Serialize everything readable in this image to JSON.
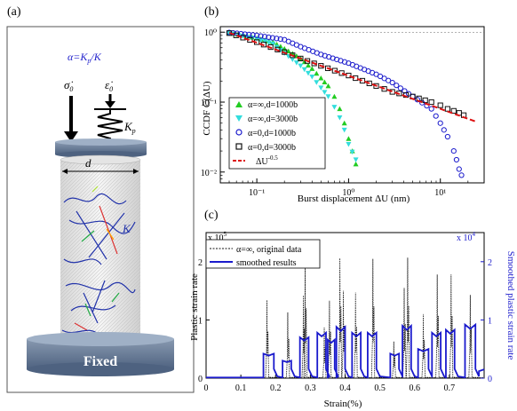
{
  "panels": {
    "a": {
      "label": "(a)",
      "alpha_eq": "α=K",
      "alpha_sub": "p",
      "alpha_tail": "/K",
      "sigma_dot": "σ̇",
      "sigma_sub": "0",
      "eps_dot": "ε̇",
      "eps_sub": "0",
      "kp": "K",
      "kp_sub": "p",
      "d": "d",
      "k": "K",
      "fixed": "Fixed"
    },
    "b": {
      "label": "(b)",
      "ylabel": "CCDF C(ΔU)",
      "xlabel": "Burst displacement ΔU (nm)",
      "xticks": [
        "10⁻¹",
        "10⁰",
        "10¹"
      ],
      "yticks": [
        "10⁰",
        "10⁻¹",
        "10⁻²"
      ],
      "legend": [
        "α=∞,d=1000b",
        "α=∞,d=3000b",
        "α=0,d=1000b",
        "α=0,d=3000b",
        "ΔU"
      ],
      "legend_exp": "-0.5"
    },
    "c": {
      "label": "(c)",
      "ylabel_left": "Plastic strain rate",
      "ylabel_right": "Smoothed plastic strain rate",
      "xlabel": "Strain(%)",
      "mult_left": "x 10",
      "mult_left_exp": "5",
      "mult_right": "x 10",
      "mult_right_exp": "4",
      "xticks": [
        "0",
        "0.1",
        "0.2",
        "0.3",
        "0.4",
        "0.5",
        "0.6",
        "0.7"
      ],
      "yticks_left": [
        "0",
        "1",
        "2"
      ],
      "yticks_right": [
        "0",
        "1",
        "2"
      ],
      "legend": [
        "α=∞, original data",
        "smoothed results"
      ]
    }
  },
  "colors": {
    "green": "#22cc22",
    "cyan": "#33dddd",
    "blue": "#1a1acc",
    "black": "#111111",
    "red": "#dd1111",
    "smooth": "#1a1acc"
  },
  "chart_data": [
    {
      "type": "scatter",
      "scale": "log-log",
      "xlim": [
        0.04,
        30
      ],
      "ylim": [
        0.007,
        1.2
      ],
      "series": [
        {
          "name": "α=∞,d=1000b",
          "marker": "triangle-up",
          "color": "#22cc22",
          "x": [
            0.05,
            0.07,
            0.1,
            0.15,
            0.2,
            0.3,
            0.4,
            0.5,
            0.6,
            0.7,
            0.8,
            0.9,
            1.0,
            1.1,
            1.2
          ],
          "y": [
            0.98,
            0.9,
            0.82,
            0.72,
            0.58,
            0.42,
            0.3,
            0.22,
            0.17,
            0.12,
            0.08,
            0.05,
            0.03,
            0.02,
            0.013
          ]
        },
        {
          "name": "α=∞,d=3000b",
          "marker": "triangle-down",
          "color": "#33dddd",
          "x": [
            0.05,
            0.07,
            0.1,
            0.15,
            0.2,
            0.3,
            0.4,
            0.5,
            0.6,
            0.7,
            0.8,
            0.9,
            1.0,
            1.2
          ],
          "y": [
            0.97,
            0.88,
            0.8,
            0.68,
            0.5,
            0.33,
            0.23,
            0.16,
            0.12,
            0.085,
            0.06,
            0.04,
            0.025,
            0.015
          ]
        },
        {
          "name": "α=0,d=1000b",
          "marker": "circle",
          "color": "#1a1acc",
          "x": [
            0.05,
            0.1,
            0.2,
            0.3,
            0.5,
            1.0,
            2.0,
            3.0,
            5.0,
            8.0,
            10,
            12,
            14,
            15,
            16,
            17
          ],
          "y": [
            0.99,
            0.9,
            0.78,
            0.62,
            0.48,
            0.36,
            0.25,
            0.19,
            0.12,
            0.08,
            0.05,
            0.032,
            0.02,
            0.015,
            0.011,
            0.009
          ]
        },
        {
          "name": "α=0,d=3000b",
          "marker": "square",
          "color": "#111111",
          "x": [
            0.05,
            0.1,
            0.2,
            0.3,
            0.5,
            1.0,
            2.0,
            3.0,
            5.0,
            8.0,
            10,
            12,
            14,
            16,
            18
          ],
          "y": [
            0.97,
            0.72,
            0.52,
            0.42,
            0.33,
            0.24,
            0.17,
            0.14,
            0.12,
            0.1,
            0.09,
            0.08,
            0.075,
            0.07,
            0.065
          ]
        },
        {
          "name": "ΔU-0.5",
          "type": "line",
          "style": "dashed",
          "color": "#dd1111",
          "x": [
            0.05,
            25
          ],
          "y": [
            0.98,
            0.052
          ]
        }
      ],
      "xlabel": "Burst displacement ΔU (nm)",
      "ylabel": "CCDF C(ΔU)",
      "legend_position": "bottom-left"
    },
    {
      "type": "line",
      "xlim": [
        0,
        0.8
      ],
      "ylim_left": [
        0,
        250000
      ],
      "ylim_right": [
        0,
        25000
      ],
      "series": [
        {
          "name": "α=∞, original data",
          "style": "dotted",
          "color": "#111111",
          "axis": "left",
          "spikes": [
            [
              0.175,
              134000
            ],
            [
              0.235,
              113000
            ],
            [
              0.28,
              142000
            ],
            [
              0.285,
              200000
            ],
            [
              0.34,
              87000
            ],
            [
              0.355,
              133000
            ],
            [
              0.385,
              206000
            ],
            [
              0.395,
              150000
            ],
            [
              0.43,
              147000
            ],
            [
              0.48,
              205000
            ],
            [
              0.54,
              63000
            ],
            [
              0.57,
              155000
            ],
            [
              0.58,
              207000
            ],
            [
              0.625,
              110000
            ],
            [
              0.665,
              178000
            ],
            [
              0.705,
              178000
            ],
            [
              0.76,
              143000
            ]
          ]
        },
        {
          "name": "smoothed results",
          "style": "solid",
          "color": "#1a1acc",
          "axis": "right",
          "steps": [
            [
              0.165,
              0.195,
              4200
            ],
            [
              0.22,
              0.245,
              3000
            ],
            [
              0.27,
              0.295,
              7000
            ],
            [
              0.32,
              0.345,
              7800
            ],
            [
              0.35,
              0.37,
              6600
            ],
            [
              0.375,
              0.4,
              8800
            ],
            [
              0.42,
              0.445,
              7800
            ],
            [
              0.465,
              0.49,
              7800
            ],
            [
              0.53,
              0.555,
              4200
            ],
            [
              0.565,
              0.59,
              9000
            ],
            [
              0.61,
              0.64,
              5000
            ],
            [
              0.65,
              0.675,
              7800
            ],
            [
              0.69,
              0.715,
              8300
            ],
            [
              0.745,
              0.775,
              9200
            ]
          ]
        }
      ],
      "xlabel": "Strain(%)",
      "ylabel": "Plastic strain rate",
      "ylabel_right": "Smoothed plastic strain rate",
      "legend_position": "top-left"
    }
  ]
}
